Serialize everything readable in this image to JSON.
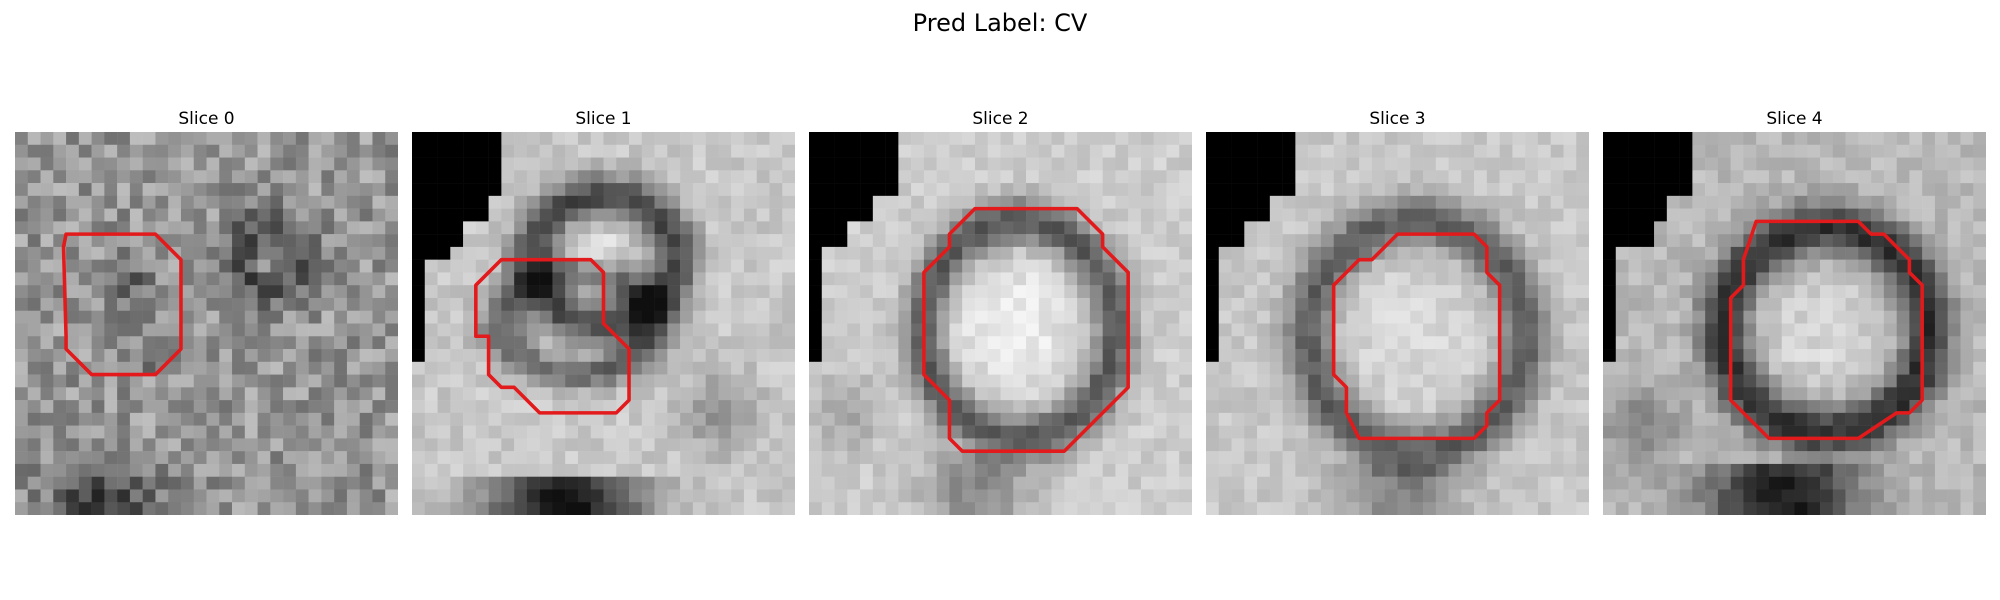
{
  "figure": {
    "suptitle": "Pred Label: CV"
  },
  "colors": {
    "contour": "#e31a1c",
    "background": "#ffffff",
    "masked": "#000000"
  },
  "panels": [
    {
      "title": "Slice 0"
    },
    {
      "title": "Slice 1"
    },
    {
      "title": "Slice 2"
    },
    {
      "title": "Slice 3"
    },
    {
      "title": "Slice 4"
    }
  ]
}
